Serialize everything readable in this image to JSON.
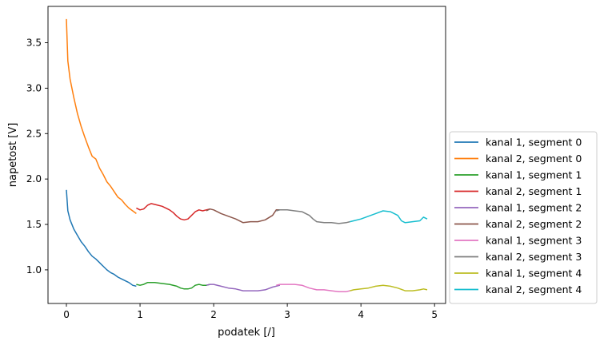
{
  "chart_data": {
    "type": "line",
    "title": "",
    "xlabel": "podatek [/]",
    "ylabel": "napetost [V]",
    "xlim": [
      -0.25,
      5.15
    ],
    "ylim": [
      0.63,
      3.9
    ],
    "xticks": [
      0,
      1,
      2,
      3,
      4,
      5
    ],
    "yticks": [
      1.0,
      1.5,
      2.0,
      2.5,
      3.0,
      3.5
    ],
    "xtick_labels": [
      "0",
      "1",
      "2",
      "3",
      "4",
      "5"
    ],
    "ytick_labels": [
      "1.0",
      "1.5",
      "2.0",
      "2.5",
      "3.0",
      "3.5"
    ],
    "grid": false,
    "legend_position": "outside right, bottom",
    "series": [
      {
        "name": "kanal 1, segment 0",
        "color": "#1f77b4",
        "x": [
          0.0,
          0.02,
          0.05,
          0.1,
          0.15,
          0.2,
          0.25,
          0.3,
          0.35,
          0.4,
          0.45,
          0.5,
          0.55,
          0.6,
          0.65,
          0.7,
          0.75,
          0.8,
          0.85,
          0.9,
          0.95
        ],
        "y": [
          1.88,
          1.65,
          1.55,
          1.45,
          1.38,
          1.31,
          1.26,
          1.2,
          1.15,
          1.12,
          1.08,
          1.04,
          1.0,
          0.97,
          0.95,
          0.92,
          0.9,
          0.88,
          0.86,
          0.83,
          0.82
        ]
      },
      {
        "name": "kanal 2, segment 0",
        "color": "#ff7f0e",
        "x": [
          0.0,
          0.02,
          0.05,
          0.1,
          0.15,
          0.2,
          0.25,
          0.3,
          0.35,
          0.4,
          0.45,
          0.5,
          0.55,
          0.6,
          0.65,
          0.7,
          0.75,
          0.8,
          0.85,
          0.9,
          0.95
        ],
        "y": [
          3.76,
          3.3,
          3.1,
          2.9,
          2.72,
          2.58,
          2.46,
          2.35,
          2.25,
          2.22,
          2.12,
          2.05,
          1.97,
          1.92,
          1.86,
          1.8,
          1.77,
          1.72,
          1.68,
          1.65,
          1.62
        ]
      },
      {
        "name": "kanal 1, segment 1",
        "color": "#2ca02c",
        "x": [
          0.95,
          1.0,
          1.05,
          1.1,
          1.15,
          1.2,
          1.3,
          1.4,
          1.5,
          1.55,
          1.6,
          1.65,
          1.7,
          1.75,
          1.8,
          1.85,
          1.9,
          1.95
        ],
        "y": [
          0.84,
          0.83,
          0.84,
          0.86,
          0.86,
          0.86,
          0.85,
          0.84,
          0.82,
          0.8,
          0.79,
          0.79,
          0.8,
          0.83,
          0.84,
          0.83,
          0.83,
          0.84
        ]
      },
      {
        "name": "kanal 2, segment 1",
        "color": "#d62728",
        "x": [
          0.95,
          1.0,
          1.05,
          1.1,
          1.15,
          1.2,
          1.3,
          1.4,
          1.45,
          1.5,
          1.55,
          1.6,
          1.65,
          1.7,
          1.75,
          1.8,
          1.85,
          1.9,
          1.95
        ],
        "y": [
          1.68,
          1.66,
          1.67,
          1.71,
          1.73,
          1.72,
          1.7,
          1.66,
          1.63,
          1.59,
          1.56,
          1.55,
          1.56,
          1.6,
          1.64,
          1.66,
          1.65,
          1.66,
          1.67
        ]
      },
      {
        "name": "kanal 1, segment 2",
        "color": "#9467bd",
        "x": [
          1.9,
          1.95,
          2.0,
          2.1,
          2.2,
          2.3,
          2.4,
          2.5,
          2.6,
          2.7,
          2.8,
          2.9
        ],
        "y": [
          0.83,
          0.84,
          0.84,
          0.82,
          0.8,
          0.79,
          0.77,
          0.77,
          0.77,
          0.78,
          0.81,
          0.83
        ]
      },
      {
        "name": "kanal 2, segment 2",
        "color": "#8c564b",
        "x": [
          1.9,
          1.95,
          2.0,
          2.1,
          2.2,
          2.3,
          2.4,
          2.5,
          2.6,
          2.7,
          2.8,
          2.85,
          2.9
        ],
        "y": [
          1.65,
          1.67,
          1.66,
          1.62,
          1.59,
          1.56,
          1.52,
          1.53,
          1.53,
          1.55,
          1.6,
          1.66,
          1.66
        ]
      },
      {
        "name": "kanal 1, segment 3",
        "color": "#e377c2",
        "x": [
          2.85,
          2.9,
          3.0,
          3.1,
          3.2,
          3.3,
          3.4,
          3.5,
          3.6,
          3.7,
          3.8,
          3.85
        ],
        "y": [
          0.83,
          0.84,
          0.84,
          0.84,
          0.83,
          0.8,
          0.78,
          0.78,
          0.77,
          0.76,
          0.76,
          0.77
        ]
      },
      {
        "name": "kanal 2, segment 3",
        "color": "#7f7f7f",
        "x": [
          2.85,
          2.9,
          3.0,
          3.1,
          3.2,
          3.3,
          3.35,
          3.4,
          3.5,
          3.6,
          3.7,
          3.8,
          3.85
        ],
        "y": [
          1.65,
          1.66,
          1.66,
          1.65,
          1.64,
          1.6,
          1.56,
          1.53,
          1.52,
          1.52,
          1.51,
          1.52,
          1.53
        ]
      },
      {
        "name": "kanal 1, segment 4",
        "color": "#bcbd22",
        "x": [
          3.85,
          3.9,
          4.0,
          4.1,
          4.2,
          4.3,
          4.4,
          4.5,
          4.6,
          4.7,
          4.8,
          4.85,
          4.9
        ],
        "y": [
          0.77,
          0.78,
          0.79,
          0.8,
          0.82,
          0.83,
          0.82,
          0.8,
          0.77,
          0.77,
          0.78,
          0.79,
          0.78
        ]
      },
      {
        "name": "kanal 2, segment 4",
        "color": "#17becf",
        "x": [
          3.85,
          3.9,
          4.0,
          4.1,
          4.2,
          4.3,
          4.4,
          4.5,
          4.55,
          4.6,
          4.7,
          4.8,
          4.85,
          4.9
        ],
        "y": [
          1.53,
          1.54,
          1.56,
          1.59,
          1.62,
          1.65,
          1.64,
          1.6,
          1.54,
          1.52,
          1.53,
          1.54,
          1.58,
          1.56
        ]
      }
    ]
  }
}
